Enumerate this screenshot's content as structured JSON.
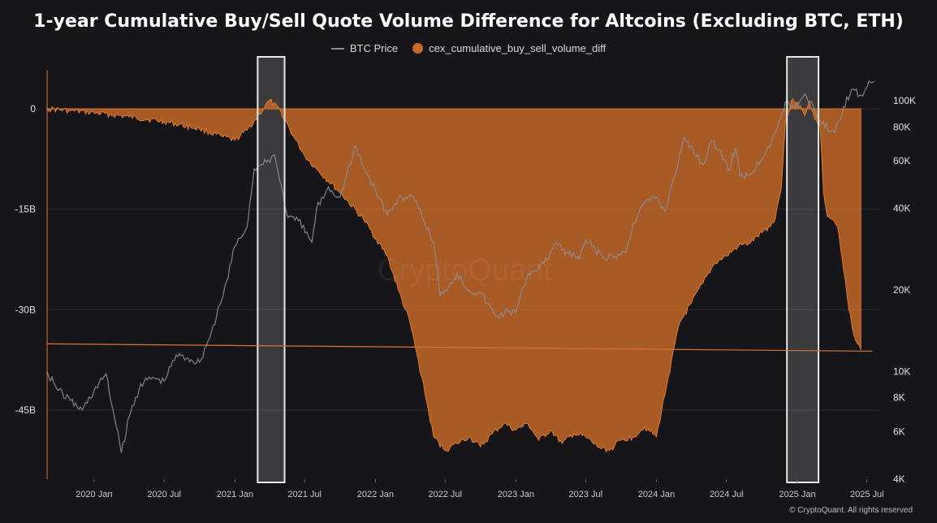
{
  "chart_data": {
    "type": "area",
    "title": "1-year Cumulative Buy/Sell Quote Volume Difference for Altcoins (Excluding BTC, ETH)",
    "watermark": "CryptoQuant",
    "footer": "© CryptoQuant. All rights reserved",
    "legend": [
      "BTC Price",
      "cex_cumulative_buy_sell_volume_diff"
    ],
    "colors": {
      "area": "#c96a2a",
      "btc_line": "#8d8d96",
      "trend_line": "#d9733a",
      "background": "#16161a"
    },
    "left_axis": {
      "ticks": [
        "0",
        "-15B",
        "-30B",
        "-45B"
      ],
      "values": [
        0,
        -15,
        -30,
        -45
      ],
      "unit": "B",
      "range": [
        -55,
        2
      ]
    },
    "right_axis": {
      "scale": "log",
      "ticks": [
        "100K",
        "80K",
        "60K",
        "40K",
        "20K",
        "10K",
        "8K",
        "6K",
        "4K"
      ],
      "values": [
        100000,
        80000,
        60000,
        40000,
        20000,
        10000,
        8000,
        6000,
        4000
      ],
      "range": [
        4000,
        130000
      ]
    },
    "x_axis": {
      "ticks": [
        "2020 Jan",
        "2020 Jul",
        "2021 Jan",
        "2021 Jul",
        "2022 Jan",
        "2022 Jul",
        "2023 Jan",
        "2023 Jul",
        "2024 Jan",
        "2024 Jul",
        "2025 Jan",
        "2025 Jul"
      ],
      "tick_dates": [
        "2020-01-01",
        "2020-07-01",
        "2021-01-01",
        "2021-07-01",
        "2022-01-01",
        "2022-07-01",
        "2023-01-01",
        "2023-07-01",
        "2024-01-01",
        "2024-07-01",
        "2025-01-01",
        "2025-07-01"
      ]
    },
    "highlights": [
      {
        "start": "2021-03-01",
        "end": "2021-05-10"
      },
      {
        "start": "2024-12-05",
        "end": "2025-02-25"
      }
    ],
    "trend_line": {
      "start": {
        "date": "2019-09-01",
        "value": -35.1
      },
      "end": {
        "date": "2025-07-15",
        "value": -36.2
      }
    },
    "series": [
      {
        "name": "cex_cumulative_buy_sell_volume_diff",
        "points": [
          [
            "2019-09-01",
            0
          ],
          [
            "2019-11-01",
            -0.3
          ],
          [
            "2020-01-01",
            -0.6
          ],
          [
            "2020-04-01",
            -1.2
          ],
          [
            "2020-07-01",
            -1.9
          ],
          [
            "2020-10-01",
            -3.0
          ],
          [
            "2020-12-01",
            -4.2
          ],
          [
            "2021-01-01",
            -4.7
          ],
          [
            "2021-02-01",
            -3.2
          ],
          [
            "2021-03-01",
            -1.2
          ],
          [
            "2021-04-01",
            1.3
          ],
          [
            "2021-05-01",
            -0.5
          ],
          [
            "2021-06-01",
            -4.0
          ],
          [
            "2021-07-01",
            -7.0
          ],
          [
            "2021-08-01",
            -9.0
          ],
          [
            "2021-10-01",
            -12.5
          ],
          [
            "2021-12-01",
            -16.5
          ],
          [
            "2022-02-01",
            -22.0
          ],
          [
            "2022-03-01",
            -27.0
          ],
          [
            "2022-04-01",
            -32.0
          ],
          [
            "2022-05-01",
            -40.0
          ],
          [
            "2022-06-01",
            -49.0
          ],
          [
            "2022-07-01",
            -51.0
          ],
          [
            "2022-08-01",
            -50.0
          ],
          [
            "2022-09-01",
            -49.0
          ],
          [
            "2022-10-01",
            -50.5
          ],
          [
            "2022-11-01",
            -48.5
          ],
          [
            "2022-12-01",
            -47.0
          ],
          [
            "2023-01-01",
            -48.0
          ],
          [
            "2023-02-01",
            -47.0
          ],
          [
            "2023-03-01",
            -49.5
          ],
          [
            "2023-04-01",
            -48.0
          ],
          [
            "2023-05-01",
            -50.0
          ],
          [
            "2023-06-01",
            -48.5
          ],
          [
            "2023-07-01",
            -49.0
          ],
          [
            "2023-08-01",
            -50.5
          ],
          [
            "2023-09-01",
            -51.0
          ],
          [
            "2023-10-01",
            -49.5
          ],
          [
            "2023-11-01",
            -49.0
          ],
          [
            "2023-12-01",
            -47.5
          ],
          [
            "2024-01-01",
            -49.0
          ],
          [
            "2024-02-01",
            -40.0
          ],
          [
            "2024-03-01",
            -32.0
          ],
          [
            "2024-04-01",
            -29.0
          ],
          [
            "2024-05-01",
            -26.0
          ],
          [
            "2024-06-01",
            -23.0
          ],
          [
            "2024-07-01",
            -22.0
          ],
          [
            "2024-08-01",
            -20.5
          ],
          [
            "2024-09-01",
            -20.0
          ],
          [
            "2024-10-01",
            -18.5
          ],
          [
            "2024-11-01",
            -17.0
          ],
          [
            "2024-11-20",
            -12.0
          ],
          [
            "2024-12-01",
            -2.0
          ],
          [
            "2024-12-20",
            1.5
          ],
          [
            "2025-01-01",
            1.0
          ],
          [
            "2025-01-20",
            -1.0
          ],
          [
            "2025-02-01",
            1.2
          ],
          [
            "2025-02-15",
            -1.5
          ],
          [
            "2025-03-01",
            -2.5
          ],
          [
            "2025-03-10",
            -12.5
          ],
          [
            "2025-03-20",
            -16.0
          ],
          [
            "2025-04-01",
            -16.5
          ],
          [
            "2025-04-15",
            -17.5
          ],
          [
            "2025-05-01",
            -24.0
          ],
          [
            "2025-05-15",
            -30.0
          ],
          [
            "2025-06-01",
            -34.5
          ],
          [
            "2025-06-15",
            -36.0
          ]
        ]
      },
      {
        "name": "BTC Price",
        "points": [
          [
            "2019-09-01",
            10000
          ],
          [
            "2019-10-01",
            8500
          ],
          [
            "2019-11-01",
            7800
          ],
          [
            "2019-12-01",
            7200
          ],
          [
            "2020-01-01",
            8500
          ],
          [
            "2020-02-01",
            9800
          ],
          [
            "2020-03-12",
            5000
          ],
          [
            "2020-04-01",
            6800
          ],
          [
            "2020-05-01",
            9000
          ],
          [
            "2020-06-01",
            9500
          ],
          [
            "2020-07-01",
            9200
          ],
          [
            "2020-08-01",
            11500
          ],
          [
            "2020-09-01",
            11200
          ],
          [
            "2020-10-01",
            10800
          ],
          [
            "2020-11-01",
            14000
          ],
          [
            "2020-12-01",
            19000
          ],
          [
            "2021-01-01",
            29000
          ],
          [
            "2021-02-01",
            34000
          ],
          [
            "2021-02-20",
            56000
          ],
          [
            "2021-03-15",
            58000
          ],
          [
            "2021-04-14",
            63000
          ],
          [
            "2021-05-19",
            37000
          ],
          [
            "2021-06-15",
            36000
          ],
          [
            "2021-07-20",
            30000
          ],
          [
            "2021-08-01",
            40000
          ],
          [
            "2021-09-01",
            48000
          ],
          [
            "2021-10-01",
            44000
          ],
          [
            "2021-11-10",
            68000
          ],
          [
            "2021-12-01",
            57000
          ],
          [
            "2022-01-01",
            47000
          ],
          [
            "2022-02-01",
            38000
          ],
          [
            "2022-03-01",
            43000
          ],
          [
            "2022-04-01",
            45000
          ],
          [
            "2022-05-01",
            38000
          ],
          [
            "2022-06-01",
            30000
          ],
          [
            "2022-06-18",
            19000
          ],
          [
            "2022-07-01",
            20000
          ],
          [
            "2022-08-01",
            23000
          ],
          [
            "2022-09-01",
            20000
          ],
          [
            "2022-10-01",
            19500
          ],
          [
            "2022-11-10",
            16000
          ],
          [
            "2022-12-15",
            16800
          ],
          [
            "2023-01-01",
            16500
          ],
          [
            "2023-02-01",
            23000
          ],
          [
            "2023-03-15",
            25000
          ],
          [
            "2023-04-15",
            30000
          ],
          [
            "2023-05-01",
            28000
          ],
          [
            "2023-06-15",
            26000
          ],
          [
            "2023-07-01",
            30500
          ],
          [
            "2023-08-20",
            26000
          ],
          [
            "2023-09-15",
            26500
          ],
          [
            "2023-10-15",
            28000
          ],
          [
            "2023-11-01",
            35000
          ],
          [
            "2023-12-01",
            42000
          ],
          [
            "2024-01-01",
            44000
          ],
          [
            "2024-01-23",
            39000
          ],
          [
            "2024-02-15",
            52000
          ],
          [
            "2024-03-14",
            73000
          ],
          [
            "2024-04-15",
            63000
          ],
          [
            "2024-05-01",
            58000
          ],
          [
            "2024-05-20",
            70000
          ],
          [
            "2024-06-15",
            66000
          ],
          [
            "2024-07-05",
            55000
          ],
          [
            "2024-07-25",
            67000
          ],
          [
            "2024-08-05",
            53000
          ],
          [
            "2024-09-06",
            54000
          ],
          [
            "2024-10-15",
            67000
          ],
          [
            "2024-11-10",
            80000
          ],
          [
            "2024-12-05",
            100000
          ],
          [
            "2024-12-25",
            94000
          ],
          [
            "2025-01-20",
            106000
          ],
          [
            "2025-02-10",
            97000
          ],
          [
            "2025-03-01",
            84000
          ],
          [
            "2025-04-08",
            76000
          ],
          [
            "2025-05-01",
            95000
          ],
          [
            "2025-05-22",
            110000
          ],
          [
            "2025-06-20",
            104000
          ],
          [
            "2025-07-10",
            117000
          ],
          [
            "2025-07-20",
            118000
          ]
        ]
      }
    ]
  }
}
